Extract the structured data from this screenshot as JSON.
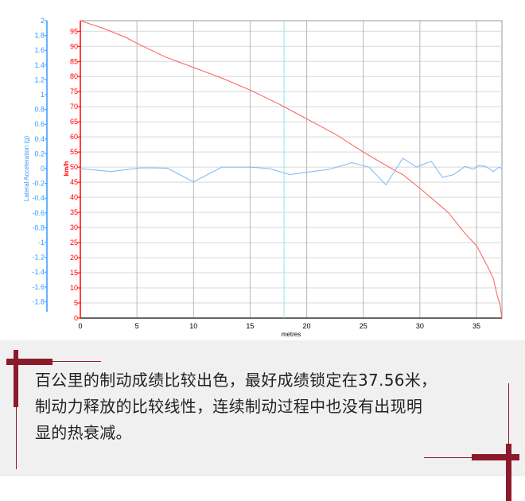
{
  "chart_data": {
    "type": "line",
    "xlabel": "metres",
    "x_ticks": [
      0,
      5,
      10,
      15,
      20,
      25,
      30,
      35
    ],
    "xlim": [
      0,
      37.25
    ],
    "y_left_label": "Lateral Acceleration (g)",
    "y_left_ticks": [
      "2",
      "1.8",
      "1.6",
      "1.4",
      "1.2",
      "1",
      "0.8",
      "0.6",
      "0.4",
      "0.2",
      "0",
      "-0.2",
      "-0.4",
      "-0.6",
      "-0.8",
      "-1",
      "-1.2",
      "-1.4",
      "-1.6",
      "-1.8"
    ],
    "y_left_lim": [
      -2,
      2
    ],
    "y_right_label": "km/h",
    "y_right_ticks": [
      0,
      5,
      10,
      15,
      20,
      25,
      30,
      35,
      40,
      45,
      50,
      55,
      60,
      65,
      70,
      75,
      80,
      85,
      90,
      95
    ],
    "y_right_lim": [
      0,
      98.5
    ],
    "grid": true,
    "cursor_x": 18,
    "colors": {
      "speed": "#ff5a5a",
      "lateral": "#7ab8f5",
      "cursor": "#8ee8e8",
      "left_axis": "#3399ff",
      "right_axis": "#ff0000"
    },
    "series": [
      {
        "axis": "right",
        "x": [
          0,
          2,
          4,
          5,
          7.5,
          10,
          12.5,
          15,
          17.5,
          20,
          22.5,
          25,
          27.5,
          28.5,
          30,
          32.5,
          34,
          35,
          36,
          36.5,
          36.8,
          37.1,
          37.25
        ],
        "y": [
          98.5,
          96,
          93,
          91,
          86.5,
          83,
          79.5,
          75.5,
          71,
          66,
          61,
          55,
          49.5,
          47.5,
          43,
          35,
          28,
          24,
          17,
          13,
          8,
          4,
          0
        ]
      },
      {
        "axis": "left",
        "x": [
          0,
          2.7,
          5.3,
          6.5,
          7.7,
          10,
          12.5,
          15,
          16.7,
          18.5,
          20,
          22,
          24,
          25.5,
          27,
          28.5,
          29.7,
          31,
          32,
          33,
          34,
          34.7,
          35.2,
          35.8,
          36.5,
          37,
          37.25
        ],
        "y": [
          0,
          -0.04,
          0.01,
          0.01,
          0.005,
          -0.18,
          0.02,
          0.02,
          0,
          -0.08,
          -0.05,
          -0.01,
          0.08,
          0.02,
          -0.22,
          0.14,
          0.02,
          0.1,
          -0.12,
          -0.08,
          0.03,
          -0.01,
          0.04,
          0.03,
          -0.04,
          0.02,
          0
        ]
      }
    ]
  },
  "caption": {
    "line1": "百公里的制动成绩比较出色，最好成绩锁定在37.56米，",
    "line2": "制动力释放的比较线性，连续制动过程中也没有出现明",
    "line3": "显的热衰减。"
  }
}
